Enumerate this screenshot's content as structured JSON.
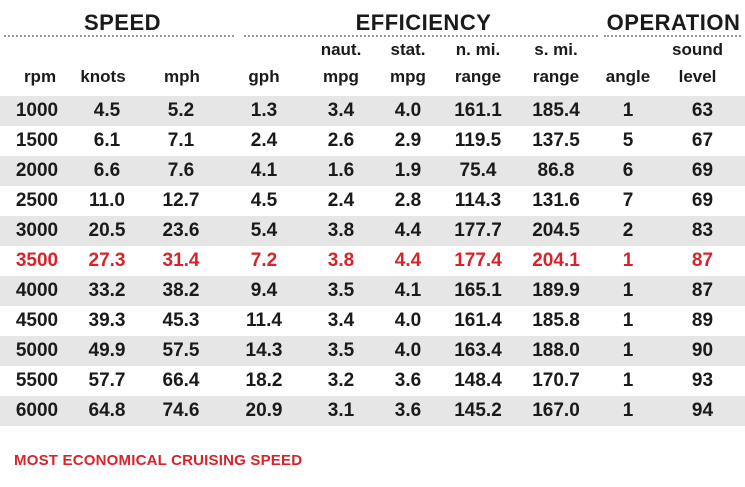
{
  "groups": {
    "speed": "SPEED",
    "efficiency": "EFFICIENCY",
    "operation": "OPERATION"
  },
  "headers": [
    {
      "top": "",
      "bottom": "rpm"
    },
    {
      "top": "",
      "bottom": "knots"
    },
    {
      "top": "",
      "bottom": "mph"
    },
    {
      "top": "",
      "bottom": "gph"
    },
    {
      "top": "naut.",
      "bottom": "mpg"
    },
    {
      "top": "stat.",
      "bottom": "mpg"
    },
    {
      "top": "n. mi.",
      "bottom": "range"
    },
    {
      "top": "s. mi.",
      "bottom": "range"
    },
    {
      "top": "",
      "bottom": "angle"
    },
    {
      "top": "sound",
      "bottom": "level"
    }
  ],
  "rows": [
    [
      "1000",
      "4.5",
      "5.2",
      "1.3",
      "3.4",
      "4.0",
      "161.1",
      "185.4",
      "1",
      "63"
    ],
    [
      "1500",
      "6.1",
      "7.1",
      "2.4",
      "2.6",
      "2.9",
      "119.5",
      "137.5",
      "5",
      "67"
    ],
    [
      "2000",
      "6.6",
      "7.6",
      "4.1",
      "1.6",
      "1.9",
      "75.4",
      "86.8",
      "6",
      "69"
    ],
    [
      "2500",
      "11.0",
      "12.7",
      "4.5",
      "2.4",
      "2.8",
      "114.3",
      "131.6",
      "7",
      "69"
    ],
    [
      "3000",
      "20.5",
      "23.6",
      "5.4",
      "3.8",
      "4.4",
      "177.7",
      "204.5",
      "2",
      "83"
    ],
    [
      "3500",
      "27.3",
      "31.4",
      "7.2",
      "3.8",
      "4.4",
      "177.4",
      "204.1",
      "1",
      "87"
    ],
    [
      "4000",
      "33.2",
      "38.2",
      "9.4",
      "3.5",
      "4.1",
      "165.1",
      "189.9",
      "1",
      "87"
    ],
    [
      "4500",
      "39.3",
      "45.3",
      "11.4",
      "3.4",
      "4.0",
      "161.4",
      "185.8",
      "1",
      "89"
    ],
    [
      "5000",
      "49.9",
      "57.5",
      "14.3",
      "3.5",
      "4.0",
      "163.4",
      "188.0",
      "1",
      "90"
    ],
    [
      "5500",
      "57.7",
      "66.4",
      "18.2",
      "3.2",
      "3.6",
      "148.4",
      "170.7",
      "1",
      "93"
    ],
    [
      "6000",
      "64.8",
      "74.6",
      "20.9",
      "3.1",
      "3.6",
      "145.2",
      "167.0",
      "1",
      "94"
    ]
  ],
  "highlight_row": 5,
  "footnote": "MOST ECONOMICAL CRUISING SPEED",
  "colors": {
    "highlight": "#d8232a",
    "shade": "#e6e6e6",
    "text": "#1a1a1a"
  }
}
